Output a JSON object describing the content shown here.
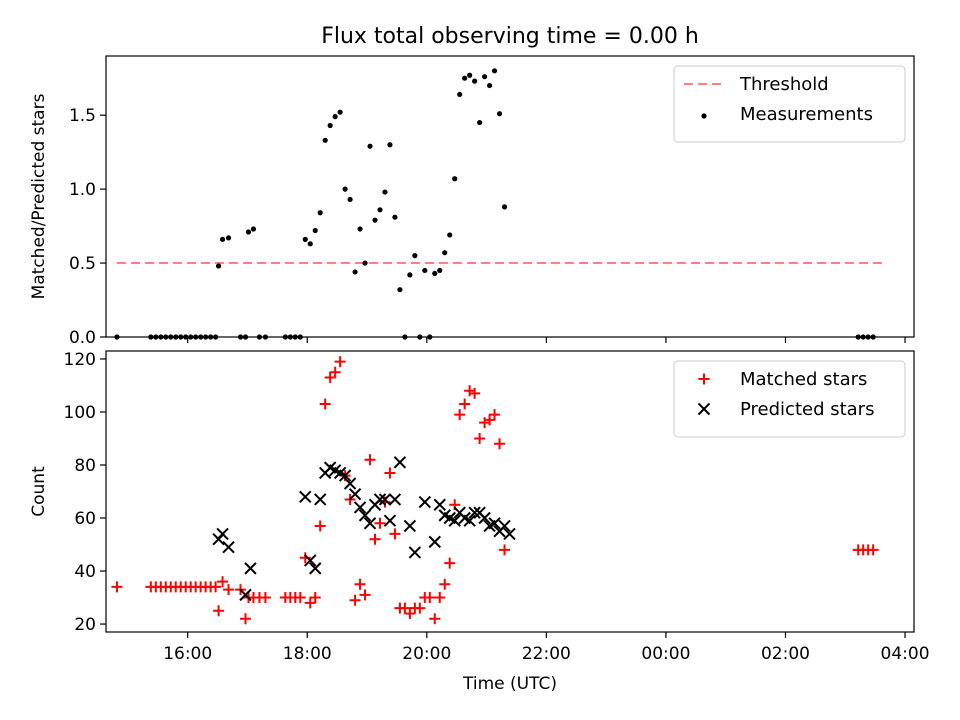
{
  "figure": {
    "title": "Flux total observing time = 0.00 h"
  },
  "chart_data": [
    {
      "type": "scatter",
      "ylabel": "Matched/Predicted stars",
      "xlim": [
        "14:38",
        "04:09"
      ],
      "ylim": [
        0,
        1.9
      ],
      "yticks": [
        "0.0",
        "0.5",
        "1.0",
        "1.5"
      ],
      "legend_placement": "top-right",
      "threshold": {
        "name": "Threshold",
        "y": 0.5,
        "x_start": "14:49",
        "x_end": "03:37",
        "color": "#ff7f7f",
        "style": "dashed"
      },
      "series": [
        {
          "name": "Measurements",
          "color": "#000000",
          "marker": "dot",
          "points": [
            [
              "14:49",
              0
            ],
            [
              "15:23",
              0
            ],
            [
              "15:28",
              0
            ],
            [
              "15:33",
              0
            ],
            [
              "15:38",
              0
            ],
            [
              "15:43",
              0
            ],
            [
              "15:48",
              0
            ],
            [
              "15:53",
              0
            ],
            [
              "15:58",
              0
            ],
            [
              "16:03",
              0
            ],
            [
              "16:08",
              0
            ],
            [
              "16:13",
              0
            ],
            [
              "16:18",
              0
            ],
            [
              "16:23",
              0
            ],
            [
              "16:28",
              0
            ],
            [
              "16:31",
              0.48
            ],
            [
              "16:35",
              0.66
            ],
            [
              "16:41",
              0.67
            ],
            [
              "16:53",
              0
            ],
            [
              "16:58",
              0
            ],
            [
              "17:01",
              0.71
            ],
            [
              "17:06",
              0.73
            ],
            [
              "17:12",
              0
            ],
            [
              "17:18",
              0
            ],
            [
              "17:38",
              0
            ],
            [
              "17:43",
              0
            ],
            [
              "17:48",
              0
            ],
            [
              "17:53",
              0
            ],
            [
              "17:58",
              0.66
            ],
            [
              "18:03",
              0.63
            ],
            [
              "18:08",
              0.72
            ],
            [
              "18:13",
              0.84
            ],
            [
              "18:18",
              1.33
            ],
            [
              "18:23",
              1.43
            ],
            [
              "18:28",
              1.49
            ],
            [
              "18:33",
              1.52
            ],
            [
              "18:38",
              1.0
            ],
            [
              "18:43",
              0.93
            ],
            [
              "18:48",
              0.44
            ],
            [
              "18:53",
              0.73
            ],
            [
              "18:58",
              0.5
            ],
            [
              "19:03",
              1.29
            ],
            [
              "19:08",
              0.79
            ],
            [
              "19:13",
              0.86
            ],
            [
              "19:18",
              0.98
            ],
            [
              "19:23",
              1.3
            ],
            [
              "19:28",
              0.81
            ],
            [
              "19:33",
              0.32
            ],
            [
              "19:38",
              0
            ],
            [
              "19:43",
              0.42
            ],
            [
              "19:48",
              0.55
            ],
            [
              "19:53",
              0
            ],
            [
              "19:58",
              0.45
            ],
            [
              "20:03",
              0
            ],
            [
              "20:08",
              0.43
            ],
            [
              "20:13",
              0.45
            ],
            [
              "20:18",
              0.57
            ],
            [
              "20:23",
              0.69
            ],
            [
              "20:28",
              1.07
            ],
            [
              "20:33",
              1.64
            ],
            [
              "20:38",
              1.75
            ],
            [
              "20:43",
              1.77
            ],
            [
              "20:48",
              1.73
            ],
            [
              "20:53",
              1.45
            ],
            [
              "20:58",
              1.76
            ],
            [
              "21:03",
              1.7
            ],
            [
              "21:08",
              1.8
            ],
            [
              "21:13",
              1.51
            ],
            [
              "21:18",
              0.88
            ],
            [
              "03:13",
              0
            ],
            [
              "03:18",
              0
            ],
            [
              "03:23",
              0
            ],
            [
              "03:28",
              0
            ]
          ]
        }
      ]
    },
    {
      "type": "scatter",
      "xlabel": "Time (UTC)",
      "ylabel": "Count",
      "xlim": [
        "14:38",
        "04:09"
      ],
      "ylim": [
        17,
        123
      ],
      "xticks": [
        "16:00",
        "18:00",
        "20:00",
        "22:00",
        "00:00",
        "02:00",
        "04:00"
      ],
      "yticks": [
        "20",
        "40",
        "60",
        "80",
        "100",
        "120"
      ],
      "legend_placement": "top-right",
      "series": [
        {
          "name": "Matched stars",
          "color": "#ff0000",
          "marker": "plus",
          "points": [
            [
              "14:49",
              34
            ],
            [
              "15:23",
              34
            ],
            [
              "15:28",
              34
            ],
            [
              "15:33",
              34
            ],
            [
              "15:38",
              34
            ],
            [
              "15:43",
              34
            ],
            [
              "15:48",
              34
            ],
            [
              "15:53",
              34
            ],
            [
              "15:58",
              34
            ],
            [
              "16:03",
              34
            ],
            [
              "16:08",
              34
            ],
            [
              "16:13",
              34
            ],
            [
              "16:18",
              34
            ],
            [
              "16:23",
              34
            ],
            [
              "16:28",
              34
            ],
            [
              "16:31",
              25
            ],
            [
              "16:35",
              36
            ],
            [
              "16:41",
              33
            ],
            [
              "16:53",
              33
            ],
            [
              "16:58",
              22
            ],
            [
              "17:01",
              30
            ],
            [
              "17:06",
              30
            ],
            [
              "17:12",
              30
            ],
            [
              "17:18",
              30
            ],
            [
              "17:38",
              30
            ],
            [
              "17:43",
              30
            ],
            [
              "17:48",
              30
            ],
            [
              "17:53",
              30
            ],
            [
              "17:58",
              45
            ],
            [
              "18:03",
              28
            ],
            [
              "18:08",
              30
            ],
            [
              "18:13",
              57
            ],
            [
              "18:18",
              103
            ],
            [
              "18:23",
              113
            ],
            [
              "18:28",
              115
            ],
            [
              "18:33",
              119
            ],
            [
              "18:38",
              76
            ],
            [
              "18:43",
              67
            ],
            [
              "18:48",
              29
            ],
            [
              "18:53",
              35
            ],
            [
              "18:58",
              31
            ],
            [
              "19:03",
              82
            ],
            [
              "19:08",
              52
            ],
            [
              "19:13",
              58
            ],
            [
              "19:18",
              66
            ],
            [
              "19:23",
              77
            ],
            [
              "19:28",
              54
            ],
            [
              "19:33",
              26
            ],
            [
              "19:38",
              26
            ],
            [
              "19:43",
              24
            ],
            [
              "19:48",
              26
            ],
            [
              "19:53",
              26
            ],
            [
              "19:58",
              30
            ],
            [
              "20:03",
              30
            ],
            [
              "20:08",
              22
            ],
            [
              "20:13",
              30
            ],
            [
              "20:18",
              35
            ],
            [
              "20:23",
              43
            ],
            [
              "20:28",
              65
            ],
            [
              "20:33",
              99
            ],
            [
              "20:38",
              103
            ],
            [
              "20:43",
              108
            ],
            [
              "20:48",
              107
            ],
            [
              "20:53",
              90
            ],
            [
              "20:58",
              96
            ],
            [
              "21:03",
              97
            ],
            [
              "21:08",
              99
            ],
            [
              "21:13",
              88
            ],
            [
              "21:18",
              48
            ],
            [
              "03:13",
              48
            ],
            [
              "03:18",
              48
            ],
            [
              "03:23",
              48
            ],
            [
              "03:28",
              48
            ]
          ]
        },
        {
          "name": "Predicted stars",
          "color": "#000000",
          "marker": "x",
          "points": [
            [
              "16:31",
              52
            ],
            [
              "16:35",
              54
            ],
            [
              "16:41",
              49
            ],
            [
              "16:58",
              31
            ],
            [
              "17:03",
              41
            ],
            [
              "17:58",
              68
            ],
            [
              "18:03",
              44
            ],
            [
              "18:08",
              41
            ],
            [
              "18:13",
              67
            ],
            [
              "18:18",
              77
            ],
            [
              "18:23",
              79
            ],
            [
              "18:28",
              78
            ],
            [
              "18:33",
              77
            ],
            [
              "18:38",
              76
            ],
            [
              "18:43",
              73
            ],
            [
              "18:48",
              69
            ],
            [
              "18:53",
              64
            ],
            [
              "18:58",
              61
            ],
            [
              "19:03",
              58
            ],
            [
              "19:08",
              65
            ],
            [
              "19:13",
              67
            ],
            [
              "19:18",
              67
            ],
            [
              "19:23",
              59
            ],
            [
              "19:28",
              67
            ],
            [
              "19:33",
              81
            ],
            [
              "19:43",
              57
            ],
            [
              "19:48",
              47
            ],
            [
              "19:58",
              66
            ],
            [
              "20:08",
              51
            ],
            [
              "20:13",
              65
            ],
            [
              "20:18",
              61
            ],
            [
              "20:23",
              60
            ],
            [
              "20:28",
              59
            ],
            [
              "20:33",
              62
            ],
            [
              "20:38",
              60
            ],
            [
              "20:43",
              59
            ],
            [
              "20:48",
              62
            ],
            [
              "20:53",
              62
            ],
            [
              "20:58",
              60
            ],
            [
              "21:03",
              57
            ],
            [
              "21:08",
              58
            ],
            [
              "21:13",
              55
            ],
            [
              "21:18",
              57
            ],
            [
              "21:23",
              54
            ]
          ]
        }
      ]
    }
  ]
}
